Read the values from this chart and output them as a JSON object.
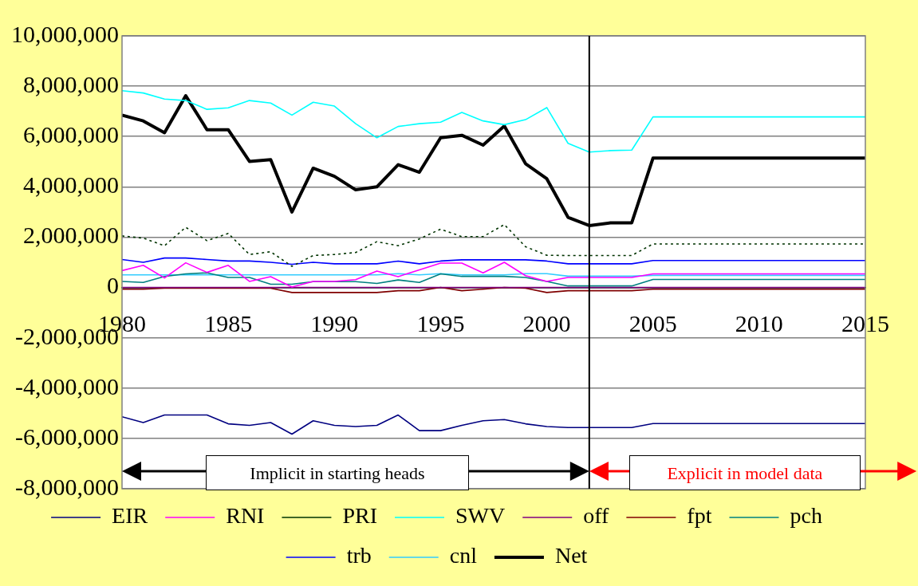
{
  "chart_data": {
    "type": "line",
    "x": [
      1980,
      1981,
      1982,
      1983,
      1984,
      1985,
      1986,
      1987,
      1988,
      1989,
      1990,
      1991,
      1992,
      1993,
      1994,
      1995,
      1996,
      1997,
      1998,
      1999,
      2000,
      2001,
      2002,
      2003,
      2004,
      2005,
      2015
    ],
    "series": [
      {
        "name": "EIR",
        "color": "#000080",
        "values": [
          -5140000,
          -5370000,
          -5070000,
          -5070000,
          -5070000,
          -5420000,
          -5480000,
          -5370000,
          -5830000,
          -5300000,
          -5480000,
          -5530000,
          -5480000,
          -5070000,
          -5690000,
          -5690000,
          -5480000,
          -5300000,
          -5250000,
          -5420000,
          -5530000,
          -5570000,
          -5570000,
          -5570000,
          -5570000,
          -5410000,
          -5410000
        ]
      },
      {
        "name": "RNI",
        "color": "#ff00ff",
        "values": [
          670000,
          880000,
          380000,
          980000,
          600000,
          880000,
          240000,
          430000,
          20000,
          240000,
          240000,
          310000,
          650000,
          430000,
          700000,
          970000,
          970000,
          580000,
          1000000,
          470000,
          240000,
          400000,
          400000,
          400000,
          400000,
          540000,
          540000
        ]
      },
      {
        "name": "PRI",
        "color": "#003300",
        "line_style": "dotted",
        "values": [
          2050000,
          1960000,
          1660000,
          2390000,
          1860000,
          2150000,
          1310000,
          1420000,
          840000,
          1270000,
          1310000,
          1390000,
          1820000,
          1660000,
          1930000,
          2320000,
          2020000,
          2020000,
          2500000,
          1620000,
          1280000,
          1270000,
          1270000,
          1270000,
          1270000,
          1730000,
          1730000
        ]
      },
      {
        "name": "SWV",
        "color": "#00ffff",
        "values": [
          7820000,
          7730000,
          7490000,
          7430000,
          7080000,
          7140000,
          7430000,
          7330000,
          6850000,
          7360000,
          7210000,
          6510000,
          5950000,
          6400000,
          6510000,
          6570000,
          6960000,
          6620000,
          6470000,
          6670000,
          7150000,
          5730000,
          5380000,
          5440000,
          5460000,
          6780000,
          6780000
        ]
      },
      {
        "name": "off",
        "color": "#800080",
        "values": [
          0,
          0,
          0,
          0,
          0,
          0,
          0,
          0,
          0,
          0,
          0,
          0,
          0,
          0,
          0,
          0,
          0,
          0,
          0,
          0,
          0,
          0,
          0,
          0,
          0,
          0,
          0
        ]
      },
      {
        "name": "fpt",
        "color": "#800000",
        "values": [
          -70000,
          -70000,
          -30000,
          -30000,
          -30000,
          -30000,
          -30000,
          -30000,
          -200000,
          -200000,
          -200000,
          -200000,
          -200000,
          -130000,
          -130000,
          0,
          -130000,
          -70000,
          0,
          -30000,
          -200000,
          -130000,
          -130000,
          -130000,
          -130000,
          -70000,
          -70000
        ]
      },
      {
        "name": "pch",
        "color": "#008080",
        "values": [
          240000,
          200000,
          440000,
          540000,
          580000,
          400000,
          400000,
          130000,
          130000,
          230000,
          230000,
          230000,
          160000,
          300000,
          200000,
          540000,
          440000,
          440000,
          440000,
          400000,
          240000,
          60000,
          60000,
          60000,
          60000,
          320000,
          320000
        ]
      },
      {
        "name": "trb",
        "color": "#0000ff",
        "values": [
          1110000,
          1000000,
          1170000,
          1170000,
          1110000,
          1050000,
          1050000,
          1000000,
          920000,
          1000000,
          940000,
          940000,
          940000,
          1050000,
          940000,
          1050000,
          1100000,
          1100000,
          1100000,
          1100000,
          1050000,
          940000,
          940000,
          940000,
          940000,
          1070000,
          1070000
        ]
      },
      {
        "name": "cnl",
        "color": "#33ccff",
        "values": [
          500000,
          500000,
          500000,
          500000,
          500000,
          500000,
          500000,
          500000,
          500000,
          500000,
          500000,
          500000,
          500000,
          550000,
          500000,
          550000,
          500000,
          500000,
          500000,
          550000,
          550000,
          450000,
          450000,
          450000,
          450000,
          480000,
          480000
        ]
      },
      {
        "name": "Net",
        "color": "#000000",
        "values": [
          6850000,
          6620000,
          6150000,
          7620000,
          6270000,
          6270000,
          5010000,
          5080000,
          3000000,
          4740000,
          4420000,
          3880000,
          4000000,
          4880000,
          4580000,
          5950000,
          6050000,
          5660000,
          6420000,
          4920000,
          4320000,
          2790000,
          2460000,
          2570000,
          2570000,
          5140000,
          5140000
        ]
      }
    ],
    "xlim": [
      1980,
      2015
    ],
    "xticks": [
      1980,
      1985,
      1990,
      1995,
      2000,
      2005,
      2010,
      2015
    ],
    "ylim": [
      -8000000,
      10000000
    ],
    "yticks": [
      {
        "value": -8000000,
        "label": "-8,000,000"
      },
      {
        "value": -6000000,
        "label": "-6,000,000"
      },
      {
        "value": -4000000,
        "label": "-4,000,000"
      },
      {
        "value": -2000000,
        "label": "-2,000,000"
      },
      0,
      {
        "value": 2000000,
        "label": "2,000,000"
      },
      {
        "value": 4000000,
        "label": "4,000,000"
      },
      {
        "value": 6000000,
        "label": "6,000,000"
      },
      {
        "value": 8000000,
        "label": "8,000,000"
      },
      {
        "value": 10000000,
        "label": "10,000,000"
      }
    ],
    "ref_lines": [
      {
        "axis": "x",
        "value": 2002,
        "color": "#000000"
      }
    ],
    "annotations": [
      "Implicit in starting heads",
      "Explicit in model data"
    ],
    "grid": "y",
    "legend": "bottom",
    "marker": "none",
    "line_style": "solid"
  }
}
